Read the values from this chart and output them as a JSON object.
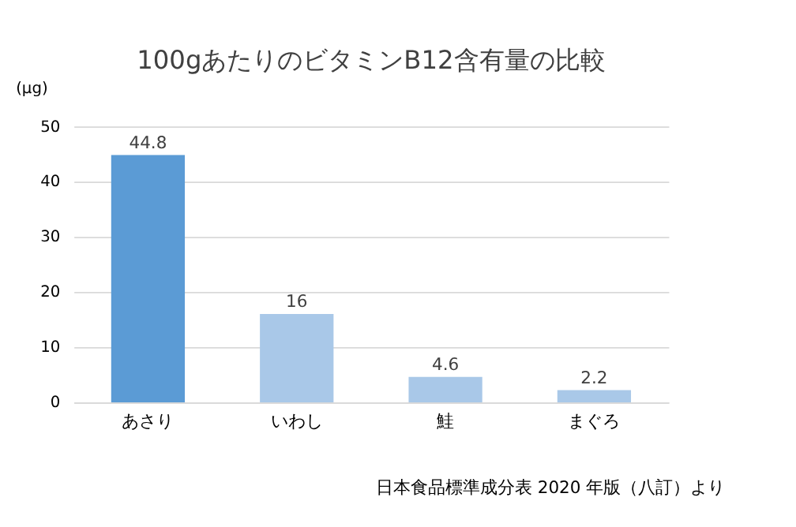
{
  "chart_data": {
    "type": "bar",
    "title": "100gあたりのビタミンB12含有量の比較",
    "ylabel": "(μg)",
    "categories": [
      "あさり",
      "いわし",
      "鮭",
      "まぐろ"
    ],
    "values": [
      44.8,
      16,
      4.6,
      2.2
    ],
    "colors": [
      "#5b9bd5",
      "#a9c8e8",
      "#a9c8e8",
      "#a9c8e8"
    ],
    "ylim": [
      0,
      50
    ],
    "yticks": [
      0,
      10,
      20,
      30,
      40,
      50
    ],
    "grid": "y",
    "data_labels": true,
    "annotations": [
      "日本食品標準成分表 2020 年版（八訂）より"
    ]
  }
}
